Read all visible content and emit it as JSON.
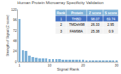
{
  "chart_data": {
    "type": "bar",
    "title": "Human Protein Microarray Specificity Validation",
    "xlabel": "Signal Rank",
    "ylabel": "Strength of Signal (Z score)",
    "x": [
      1,
      2,
      3,
      4,
      5,
      6,
      7,
      8,
      9,
      10,
      11,
      12,
      13,
      14,
      15,
      16,
      17,
      18,
      19,
      20,
      21,
      22,
      23,
      24,
      25,
      26,
      27,
      28,
      29,
      30
    ],
    "values": [
      98.07,
      26.33,
      25.38,
      14.5,
      11.2,
      9.8,
      8.5,
      7.9,
      7.2,
      6.8,
      6.3,
      5.9,
      5.6,
      5.3,
      5.1,
      4.9,
      4.7,
      4.5,
      4.3,
      4.1,
      3.9,
      3.7,
      3.6,
      3.4,
      3.3,
      3.2,
      3.1,
      3.0,
      2.9,
      2.8
    ],
    "color": "#7fb2d8",
    "xlim": [
      0.5,
      30.5
    ],
    "xticks": [
      1,
      10,
      20,
      30
    ],
    "ylim": [
      0,
      120
    ],
    "yticks": [
      0,
      24,
      48,
      72,
      96,
      120
    ],
    "grid": false,
    "table": {
      "headers": [
        "Rank",
        "Protein",
        "Z score",
        "S score"
      ],
      "rows": [
        [
          "1",
          "THBD",
          "98.07",
          "69.74"
        ],
        [
          "2",
          "TMDshl98",
          "26.33",
          "2.95"
        ],
        [
          "3",
          "FAM98A",
          "25.38",
          "0.9"
        ]
      ],
      "header_color": "#7fb2d8",
      "header_text_color": "white",
      "row_colors": [
        "#4472c4",
        "#f2f2f2",
        "#f2f2f2"
      ],
      "row_text_colors": [
        "white",
        "black",
        "black"
      ]
    }
  }
}
